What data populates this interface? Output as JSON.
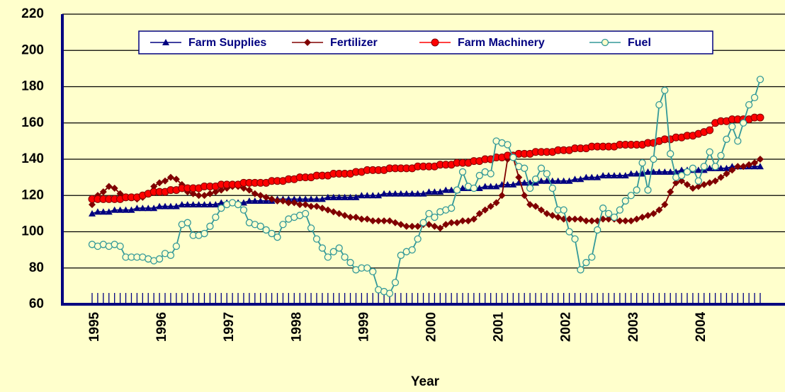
{
  "chart_data": {
    "type": "line",
    "x_label": "Year",
    "categories": [
      "1995",
      null,
      null,
      null,
      null,
      null,
      null,
      null,
      null,
      null,
      null,
      null,
      "1996",
      null,
      null,
      null,
      null,
      null,
      null,
      null,
      null,
      null,
      null,
      null,
      "1997",
      null,
      null,
      null,
      null,
      null,
      null,
      null,
      null,
      null,
      null,
      null,
      "1998",
      null,
      null,
      null,
      null,
      null,
      null,
      null,
      null,
      null,
      null,
      null,
      "1999",
      null,
      null,
      null,
      null,
      null,
      null,
      null,
      null,
      null,
      null,
      null,
      "2000",
      null,
      null,
      null,
      null,
      null,
      null,
      null,
      null,
      null,
      null,
      null,
      "2001",
      null,
      null,
      null,
      null,
      null,
      null,
      null,
      null,
      null,
      null,
      null,
      "2002",
      null,
      null,
      null,
      null,
      null,
      null,
      null,
      null,
      null,
      null,
      null,
      "2003",
      null,
      null,
      null,
      null,
      null,
      null,
      null,
      null,
      null,
      null,
      null,
      "2004",
      null,
      null,
      null,
      null,
      null,
      null,
      null,
      null,
      null,
      null,
      null
    ],
    "ylim": [
      60,
      220
    ],
    "yticks": [
      60,
      80,
      100,
      120,
      140,
      160,
      180,
      200,
      220
    ],
    "grid": true,
    "legend": "upper center",
    "series": [
      {
        "name": "Farm Supplies",
        "color": "#000080",
        "marker": "triangle",
        "values": [
          110,
          111,
          111,
          111,
          112,
          112,
          112,
          112,
          113,
          113,
          113,
          113,
          114,
          114,
          114,
          114,
          115,
          115,
          115,
          115,
          115,
          115,
          115,
          116,
          116,
          116,
          116,
          116,
          117,
          117,
          117,
          117,
          117,
          118,
          118,
          118,
          118,
          118,
          118,
          118,
          118,
          118,
          119,
          119,
          119,
          119,
          119,
          119,
          120,
          120,
          120,
          120,
          121,
          121,
          121,
          121,
          121,
          121,
          121,
          121,
          122,
          122,
          122,
          123,
          123,
          123,
          124,
          124,
          124,
          124,
          125,
          125,
          125,
          126,
          126,
          126,
          127,
          127,
          127,
          127,
          128,
          128,
          128,
          128,
          128,
          128,
          129,
          129,
          130,
          130,
          130,
          131,
          131,
          131,
          131,
          131,
          132,
          132,
          132,
          133,
          133,
          133,
          133,
          133,
          133,
          134,
          134,
          134,
          134,
          134,
          135,
          135,
          135,
          135,
          136,
          136,
          136,
          136,
          136,
          136
        ]
      },
      {
        "name": "Fertilizer",
        "color": "#800000",
        "marker": "diamond",
        "values": [
          115,
          120,
          122,
          125,
          124,
          121,
          119,
          119,
          118,
          119,
          121,
          125,
          127,
          128,
          130,
          129,
          126,
          122,
          121,
          120,
          120,
          121,
          122,
          123,
          124,
          125,
          125,
          124,
          123,
          121,
          120,
          119,
          118,
          117,
          117,
          116,
          116,
          115,
          115,
          114,
          114,
          113,
          112,
          111,
          110,
          109,
          108,
          108,
          107,
          107,
          106,
          106,
          106,
          106,
          105,
          104,
          103,
          103,
          103,
          104,
          104,
          103,
          102,
          104,
          105,
          105,
          106,
          106,
          107,
          110,
          112,
          114,
          116,
          120,
          140,
          141,
          130,
          120,
          115,
          114,
          112,
          110,
          109,
          108,
          107,
          107,
          107,
          107,
          106,
          106,
          106,
          107,
          107,
          107,
          106,
          106,
          106,
          107,
          108,
          109,
          110,
          112,
          115,
          122,
          127,
          128,
          126,
          124,
          125,
          126,
          127,
          128,
          130,
          132,
          134,
          136,
          136,
          137,
          138,
          140
        ]
      },
      {
        "name": "Farm Machinery",
        "color": "#ff0000",
        "marker": "circle",
        "values": [
          118,
          118,
          118,
          118,
          118,
          118,
          119,
          119,
          119,
          120,
          121,
          122,
          122,
          122,
          123,
          123,
          124,
          124,
          124,
          124,
          125,
          125,
          125,
          126,
          126,
          126,
          126,
          127,
          127,
          127,
          127,
          127,
          128,
          128,
          128,
          129,
          129,
          130,
          130,
          130,
          131,
          131,
          131,
          132,
          132,
          132,
          132,
          133,
          133,
          134,
          134,
          134,
          134,
          135,
          135,
          135,
          135,
          135,
          136,
          136,
          136,
          136,
          137,
          137,
          137,
          138,
          138,
          138,
          139,
          139,
          140,
          140,
          141,
          141,
          142,
          142,
          143,
          143,
          143,
          144,
          144,
          144,
          144,
          145,
          145,
          145,
          146,
          146,
          146,
          147,
          147,
          147,
          147,
          147,
          148,
          148,
          148,
          148,
          148,
          149,
          149,
          150,
          151,
          151,
          152,
          152,
          153,
          153,
          154,
          155,
          156,
          160,
          161,
          161,
          162,
          162,
          162,
          162,
          163,
          163
        ]
      },
      {
        "name": "Fuel",
        "color": "#339999",
        "marker": "open-circle",
        "values": [
          93,
          92,
          93,
          92,
          93,
          92,
          86,
          86,
          86,
          86,
          85,
          84,
          85,
          88,
          87,
          92,
          104,
          105,
          98,
          98,
          99,
          103,
          108,
          113,
          115,
          116,
          115,
          112,
          105,
          104,
          103,
          101,
          99,
          97,
          104,
          107,
          108,
          109,
          110,
          102,
          96,
          91,
          86,
          89,
          91,
          86,
          83,
          79,
          80,
          80,
          78,
          68,
          67,
          66,
          72,
          87,
          89,
          90,
          96,
          105,
          110,
          108,
          111,
          112,
          113,
          123,
          133,
          125,
          124,
          131,
          133,
          132,
          150,
          149,
          148,
          141,
          136,
          135,
          124,
          129,
          135,
          132,
          124,
          112,
          112,
          100,
          96,
          79,
          83,
          86,
          101,
          113,
          110,
          108,
          112,
          117,
          120,
          123,
          138,
          123,
          140,
          170,
          178,
          143,
          130,
          131,
          133,
          135,
          128,
          136,
          144,
          136,
          142,
          151,
          158,
          150,
          160,
          170,
          174,
          184
        ]
      }
    ]
  }
}
